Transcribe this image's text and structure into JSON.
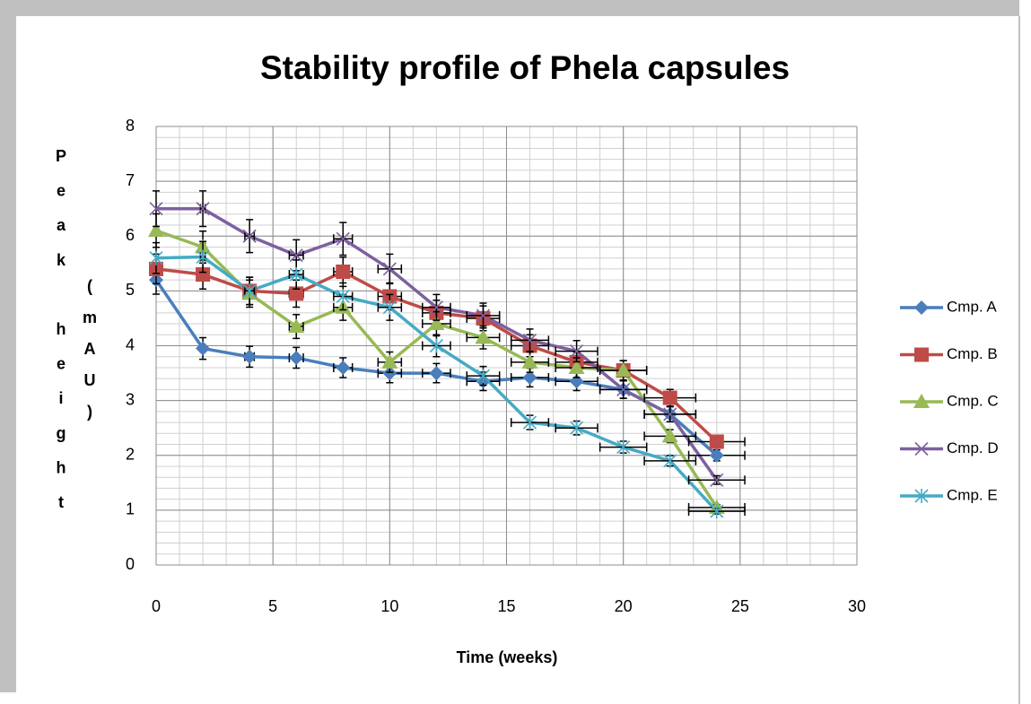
{
  "chart_data": {
    "type": "line",
    "title": "Stability profile of Phela capsules",
    "xlabel": "Time (weeks)",
    "ylabel": "Peak height",
    "ylabel_unit": "(mAU)",
    "x": [
      0,
      2,
      4,
      6,
      8,
      10,
      12,
      14,
      16,
      18,
      20,
      22,
      24
    ],
    "series": [
      {
        "name": "Cmp. A",
        "color": "#4a7ebb",
        "marker": "diamond",
        "values": [
          5.2,
          3.95,
          3.8,
          3.78,
          3.6,
          3.5,
          3.5,
          3.35,
          3.42,
          3.35,
          3.2,
          2.75,
          2.0
        ]
      },
      {
        "name": "Cmp. B",
        "color": "#be4b48",
        "marker": "square",
        "values": [
          5.4,
          5.3,
          5.0,
          4.95,
          5.35,
          4.9,
          4.6,
          4.5,
          4.0,
          3.7,
          3.55,
          3.05,
          2.25
        ]
      },
      {
        "name": "Cmp. C",
        "color": "#98b954",
        "marker": "triangle",
        "values": [
          6.1,
          5.8,
          4.95,
          4.35,
          4.7,
          3.7,
          4.4,
          4.15,
          3.7,
          3.6,
          3.55,
          2.35,
          1.05
        ]
      },
      {
        "name": "Cmp. D",
        "color": "#7d60a0",
        "marker": "x",
        "values": [
          6.5,
          6.5,
          6.0,
          5.65,
          5.95,
          5.4,
          4.7,
          4.55,
          4.1,
          3.9,
          3.2,
          2.75,
          1.55
        ]
      },
      {
        "name": "Cmp. E",
        "color": "#46aac5",
        "marker": "asterisk",
        "values": [
          5.6,
          5.62,
          5.0,
          5.3,
          4.9,
          4.7,
          4.0,
          3.45,
          2.6,
          2.5,
          2.15,
          1.9,
          0.98
        ]
      }
    ],
    "error_percent": 5,
    "xlim": [
      0,
      30
    ],
    "xticks": [
      0,
      5,
      10,
      15,
      20,
      25,
      30
    ],
    "ylim": [
      0,
      8
    ],
    "yticks": [
      0,
      1,
      2,
      3,
      4,
      5,
      6,
      7,
      8
    ],
    "grid": true,
    "minor_x": 1,
    "minor_y": 0.2,
    "legend": "right"
  }
}
